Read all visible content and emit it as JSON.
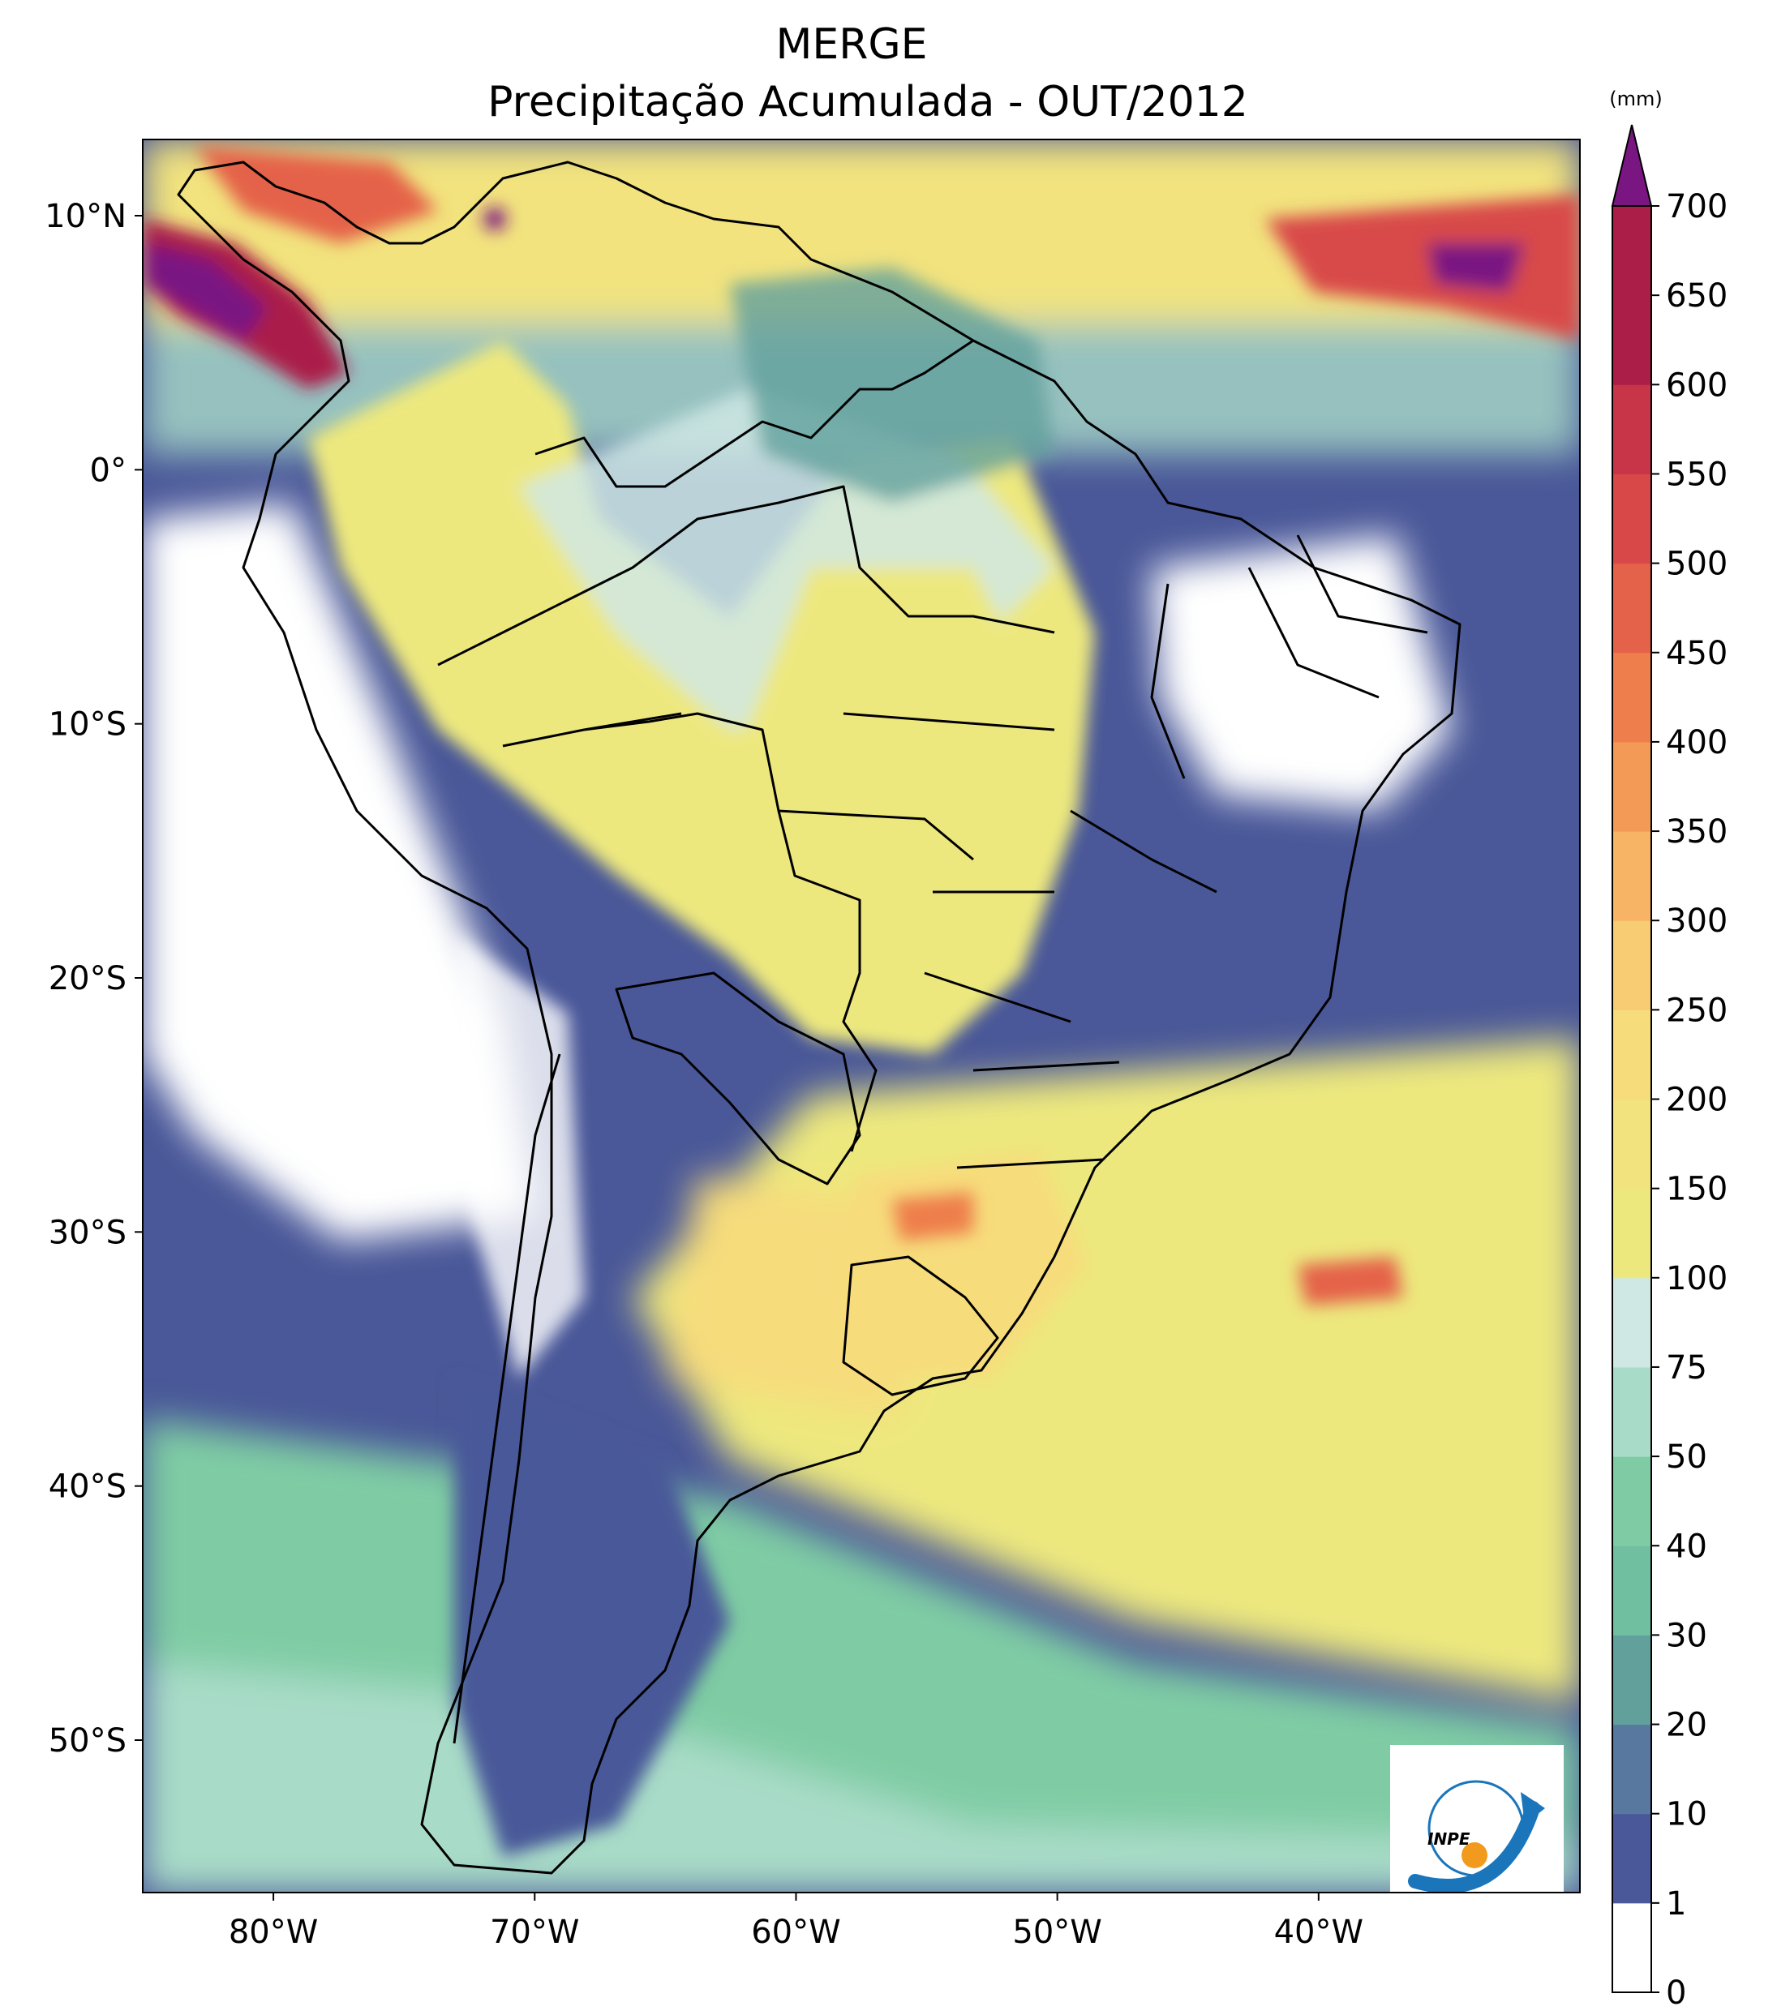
{
  "figure": {
    "title_line1": "MERGE",
    "title_line2": "Precipitação Acumulada - OUT/2012"
  },
  "map": {
    "extent_lon": [
      -85,
      -30
    ],
    "extent_lat": [
      -56,
      13
    ],
    "lon_ticks": [
      {
        "value": -80,
        "label": "80°W"
      },
      {
        "value": -70,
        "label": "70°W"
      },
      {
        "value": -60,
        "label": "60°W"
      },
      {
        "value": -50,
        "label": "50°W"
      },
      {
        "value": -40,
        "label": "40°W"
      }
    ],
    "lat_ticks": [
      {
        "value": 10,
        "label": "10°N"
      },
      {
        "value": 0,
        "label": "0°"
      },
      {
        "value": -10,
        "label": "10°S"
      },
      {
        "value": -20,
        "label": "20°S"
      },
      {
        "value": -30,
        "label": "30°S"
      },
      {
        "value": -40,
        "label": "40°S"
      },
      {
        "value": -50,
        "label": "50°S"
      }
    ],
    "logo_text": "INPE"
  },
  "colorbar": {
    "unit": "(mm)",
    "levels": [
      0,
      1,
      10,
      20,
      30,
      40,
      50,
      75,
      100,
      150,
      200,
      250,
      300,
      350,
      400,
      450,
      500,
      550,
      600,
      650,
      700
    ],
    "labels": [
      "0",
      "1",
      "10",
      "20",
      "30",
      "40",
      "50",
      "75",
      "100",
      "150",
      "200",
      "250",
      "300",
      "350",
      "400",
      "450",
      "500",
      "550",
      "600",
      "650",
      "700"
    ],
    "colors": [
      "#ffffff",
      "#4a5899",
      "#5878a0",
      "#62a09c",
      "#6fbfa0",
      "#7fcca4",
      "#a9dcc8",
      "#cfe8e4",
      "#ede87e",
      "#f2e37e",
      "#f7dc7c",
      "#f8cc72",
      "#f6b464",
      "#f29a56",
      "#ee7e4c",
      "#e4624a",
      "#d84848",
      "#c83448",
      "#aa1e48"
    ],
    "extend_color": "#7a1682"
  },
  "palette": {
    "background": "#ffffff",
    "ocean_dry": "#4a5899",
    "land_wet": "#ede87e"
  }
}
